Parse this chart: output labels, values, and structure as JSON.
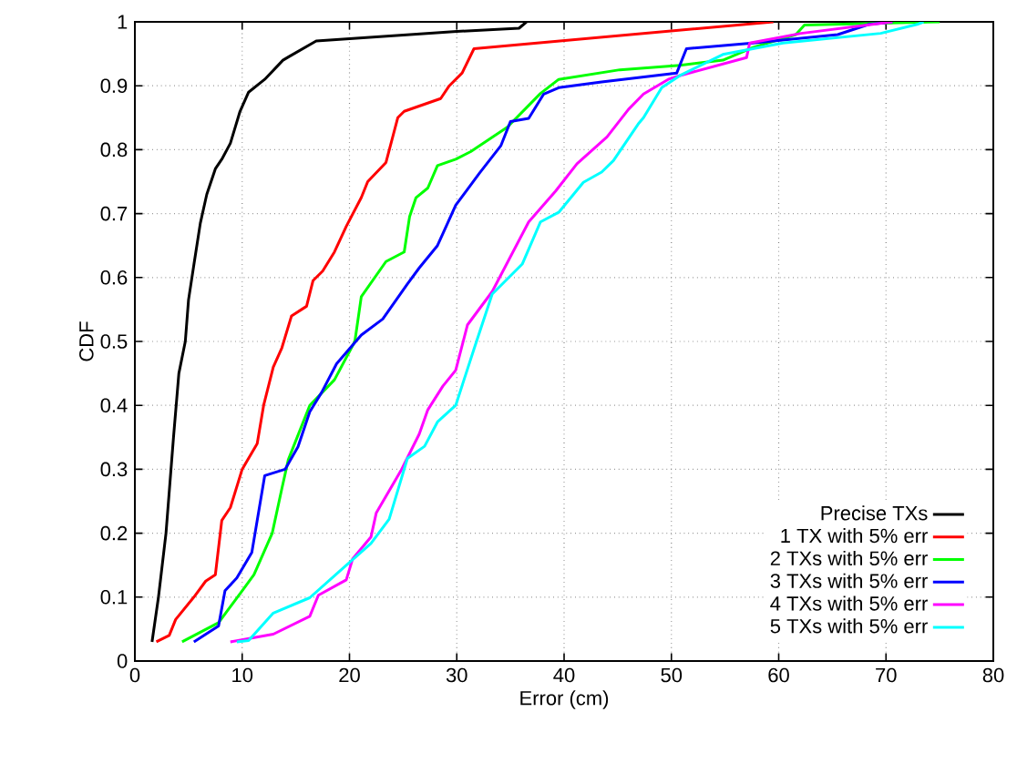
{
  "chart_data": {
    "type": "line",
    "xlabel": "Error (cm)",
    "ylabel": "CDF",
    "xlim": [
      0,
      80
    ],
    "ylim": [
      0,
      1
    ],
    "xticks": [
      0,
      10,
      20,
      30,
      40,
      50,
      60,
      70,
      80
    ],
    "yticks": [
      0,
      0.1,
      0.2,
      0.3,
      0.4,
      0.5,
      0.6,
      0.7,
      0.8,
      0.9,
      1
    ],
    "grid": true,
    "legend": "bottom right",
    "line_style": "solid",
    "series": [
      {
        "name": "Precise TXs",
        "color": "#000000",
        "x": [
          1.6,
          2.2,
          2.9,
          3.6,
          4.1,
          4.7,
          5.0,
          5.5,
          6.1,
          6.7,
          7.5,
          8.1,
          8.9,
          9.8,
          10.6,
          12.1,
          13.8,
          14.3,
          16.9,
          30,
          35.8,
          36.5
        ],
        "values": [
          0.03,
          0.1,
          0.2,
          0.35,
          0.45,
          0.5,
          0.565,
          0.62,
          0.685,
          0.73,
          0.77,
          0.785,
          0.81,
          0.86,
          0.89,
          0.91,
          0.94,
          0.945,
          0.97,
          0.985,
          0.99,
          1.0
        ]
      },
      {
        "name": "1 TX with 5% err",
        "color": "#ff0000",
        "x": [
          2,
          3.2,
          3.8,
          5.5,
          6.6,
          7.5,
          8.1,
          8.9,
          10.0,
          11.4,
          12.0,
          12.9,
          13.7,
          14.6,
          16.0,
          16.6,
          17.5,
          18.6,
          19.7,
          21.1,
          21.7,
          23.4,
          24.5,
          25.1,
          28.5,
          29.3,
          30.5,
          31.6,
          59.5
        ],
        "values": [
          0.03,
          0.04,
          0.065,
          0.1,
          0.125,
          0.135,
          0.22,
          0.24,
          0.3,
          0.34,
          0.4,
          0.46,
          0.49,
          0.54,
          0.555,
          0.595,
          0.61,
          0.64,
          0.68,
          0.725,
          0.75,
          0.78,
          0.85,
          0.86,
          0.88,
          0.9,
          0.92,
          0.958,
          1.0
        ]
      },
      {
        "name": "2 TXs with 5% err",
        "color": "#00ff00",
        "x": [
          4.4,
          7.8,
          10.0,
          11.1,
          12.8,
          13.7,
          14.3,
          16.3,
          18.6,
          20.5,
          21.1,
          23.4,
          25.1,
          25.6,
          26.2,
          27.3,
          28.2,
          29.9,
          31.3,
          34.7,
          37.8,
          39.5,
          45.2,
          50.8,
          54.8,
          57.6,
          61.6,
          62.4,
          75.0
        ],
        "values": [
          0.03,
          0.06,
          0.11,
          0.135,
          0.2,
          0.27,
          0.315,
          0.4,
          0.44,
          0.5,
          0.57,
          0.625,
          0.64,
          0.695,
          0.725,
          0.74,
          0.775,
          0.785,
          0.797,
          0.835,
          0.888,
          0.91,
          0.925,
          0.932,
          0.94,
          0.96,
          0.98,
          0.995,
          1.0
        ]
      },
      {
        "name": "3 TXs with 5% err",
        "color": "#0000ff",
        "x": [
          5.5,
          7.8,
          8.4,
          9.5,
          10.9,
          12.1,
          14.0,
          15.2,
          16.3,
          17.4,
          18.8,
          21.1,
          23.1,
          25.4,
          26.5,
          28.2,
          29.9,
          32.1,
          34.1,
          35.0,
          36.7,
          38.1,
          39.5,
          43.5,
          50.5,
          51.4,
          57.6,
          65.5,
          68.4,
          70.6
        ],
        "values": [
          0.03,
          0.055,
          0.11,
          0.13,
          0.17,
          0.29,
          0.3,
          0.335,
          0.39,
          0.42,
          0.465,
          0.51,
          0.535,
          0.59,
          0.615,
          0.65,
          0.713,
          0.763,
          0.806,
          0.844,
          0.849,
          0.887,
          0.897,
          0.906,
          0.92,
          0.958,
          0.967,
          0.98,
          0.996,
          1.0
        ]
      },
      {
        "name": "4 TXs with 5% err",
        "color": "#ff00ff",
        "x": [
          8.9,
          12.9,
          16.3,
          17.1,
          19.7,
          20.3,
          22.0,
          22.5,
          24.8,
          26.5,
          27.3,
          28.7,
          29.9,
          31.0,
          33.3,
          36.7,
          39.2,
          41.2,
          44.0,
          46.0,
          47.4,
          49.7,
          50.8,
          57.0,
          57.3,
          62.1,
          70.6
        ],
        "values": [
          0.03,
          0.042,
          0.07,
          0.103,
          0.127,
          0.16,
          0.194,
          0.232,
          0.298,
          0.355,
          0.393,
          0.43,
          0.455,
          0.526,
          0.578,
          0.687,
          0.735,
          0.778,
          0.82,
          0.863,
          0.887,
          0.91,
          0.916,
          0.944,
          0.967,
          0.982,
          1.0
        ]
      },
      {
        "name": "5 TXs with 5% err",
        "color": "#00ffff",
        "x": [
          9.5,
          10.6,
          12.9,
          16.3,
          19.1,
          22.0,
          23.7,
          25.4,
          27.0,
          28.2,
          29.9,
          31.6,
          33.3,
          36.1,
          37.8,
          39.5,
          41.8,
          43.5,
          44.6,
          46.9,
          47.4,
          49.1,
          50.8,
          54.8,
          60.4,
          69.5,
          72.9,
          73.5
        ],
        "values": [
          0.03,
          0.032,
          0.075,
          0.099,
          0.141,
          0.184,
          0.222,
          0.317,
          0.336,
          0.374,
          0.4,
          0.488,
          0.574,
          0.621,
          0.687,
          0.702,
          0.749,
          0.765,
          0.783,
          0.84,
          0.85,
          0.897,
          0.916,
          0.949,
          0.967,
          0.982,
          0.996,
          1.0
        ]
      }
    ]
  }
}
